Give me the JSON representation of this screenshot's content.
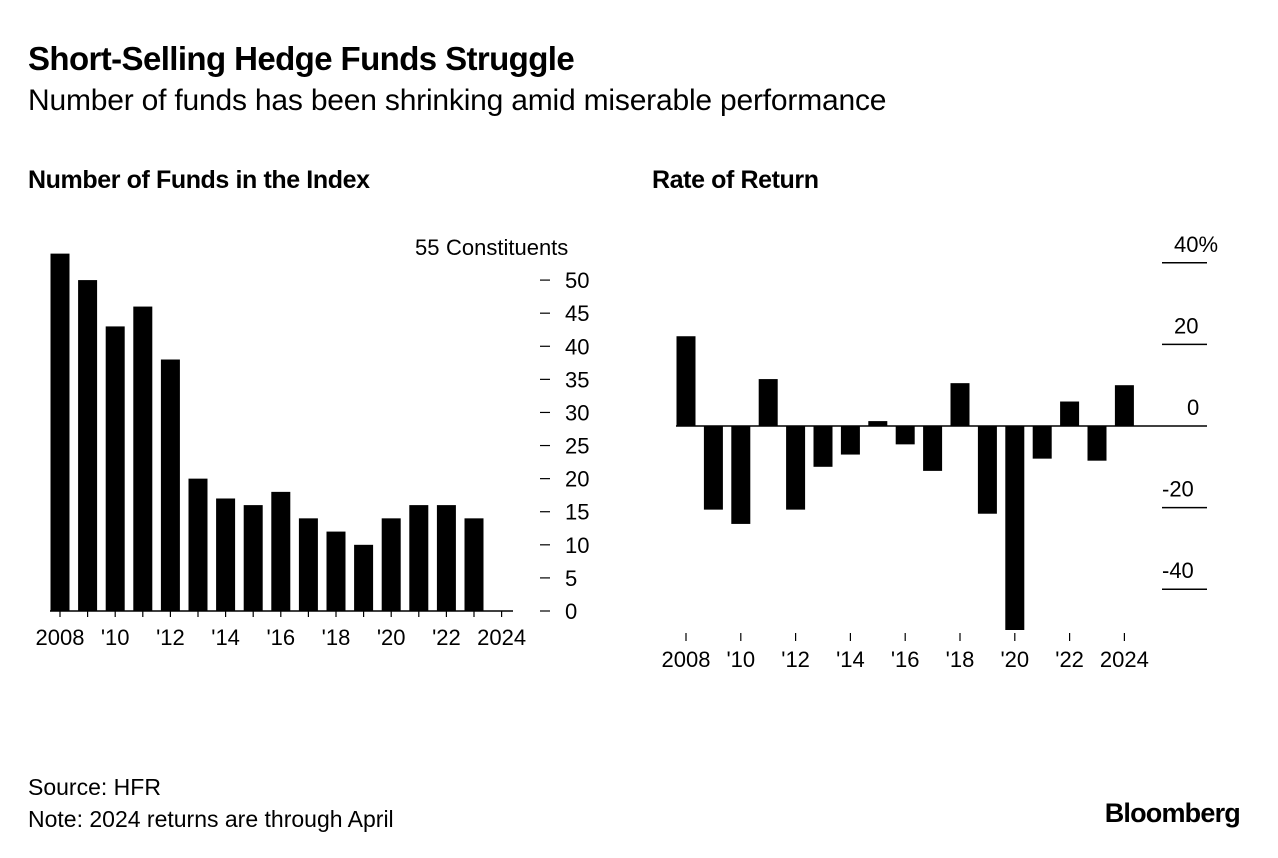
{
  "title": "Short-Selling Hedge Funds Struggle",
  "subtitle": "Number of funds has been shrinking amid miserable performance",
  "chart_data": [
    {
      "type": "bar",
      "title": "Number of Funds in the Index",
      "ylabel": "Constituents",
      "ylim": [
        0,
        55
      ],
      "yticks": [
        "0",
        "5",
        "10",
        "15",
        "20",
        "25",
        "30",
        "35",
        "40",
        "45",
        "50",
        "55"
      ],
      "x": [
        2008,
        2009,
        2010,
        2011,
        2012,
        2013,
        2014,
        2015,
        2016,
        2017,
        2018,
        2019,
        2020,
        2021,
        2022,
        2023
      ],
      "values": [
        54,
        50,
        43,
        46,
        38,
        20,
        17,
        16,
        18,
        14,
        12,
        10,
        14,
        16,
        16,
        14
      ],
      "xtick_labels": [
        {
          "year": 2008,
          "label": "2008"
        },
        {
          "year": 2010,
          "label": "'10"
        },
        {
          "year": 2012,
          "label": "'12"
        },
        {
          "year": 2014,
          "label": "'14"
        },
        {
          "year": 2016,
          "label": "'16"
        },
        {
          "year": 2018,
          "label": "'18"
        },
        {
          "year": 2020,
          "label": "'20"
        },
        {
          "year": 2022,
          "label": "'22"
        },
        {
          "year": 2024,
          "label": "2024"
        }
      ]
    },
    {
      "type": "bar",
      "title": "Rate of Return",
      "ylabel": "%",
      "ylim": [
        -50,
        45
      ],
      "yticks": [
        {
          "value": 40,
          "label": "40%"
        },
        {
          "value": 20,
          "label": "20"
        },
        {
          "value": 0,
          "label": "0"
        },
        {
          "value": -20,
          "label": "-20"
        },
        {
          "value": -40,
          "label": "-40"
        }
      ],
      "x": [
        2008,
        2009,
        2010,
        2011,
        2012,
        2013,
        2014,
        2015,
        2016,
        2017,
        2018,
        2019,
        2020,
        2021,
        2022,
        2023,
        2024
      ],
      "values": [
        22,
        -20.5,
        -24,
        11.5,
        -20.5,
        -10,
        -7,
        1.2,
        -4.5,
        -11,
        10.5,
        -21.5,
        -50,
        -8,
        6,
        -8.5,
        10
      ],
      "xtick_labels": [
        {
          "year": 2008,
          "label": "2008"
        },
        {
          "year": 2010,
          "label": "'10"
        },
        {
          "year": 2012,
          "label": "'12"
        },
        {
          "year": 2014,
          "label": "'14"
        },
        {
          "year": 2016,
          "label": "'16"
        },
        {
          "year": 2018,
          "label": "'18"
        },
        {
          "year": 2020,
          "label": "'20"
        },
        {
          "year": 2022,
          "label": "'22"
        },
        {
          "year": 2024,
          "label": "2024"
        }
      ]
    }
  ],
  "source": "Source: HFR",
  "note": "Note: 2024 returns are through April",
  "logo": "Bloomberg"
}
